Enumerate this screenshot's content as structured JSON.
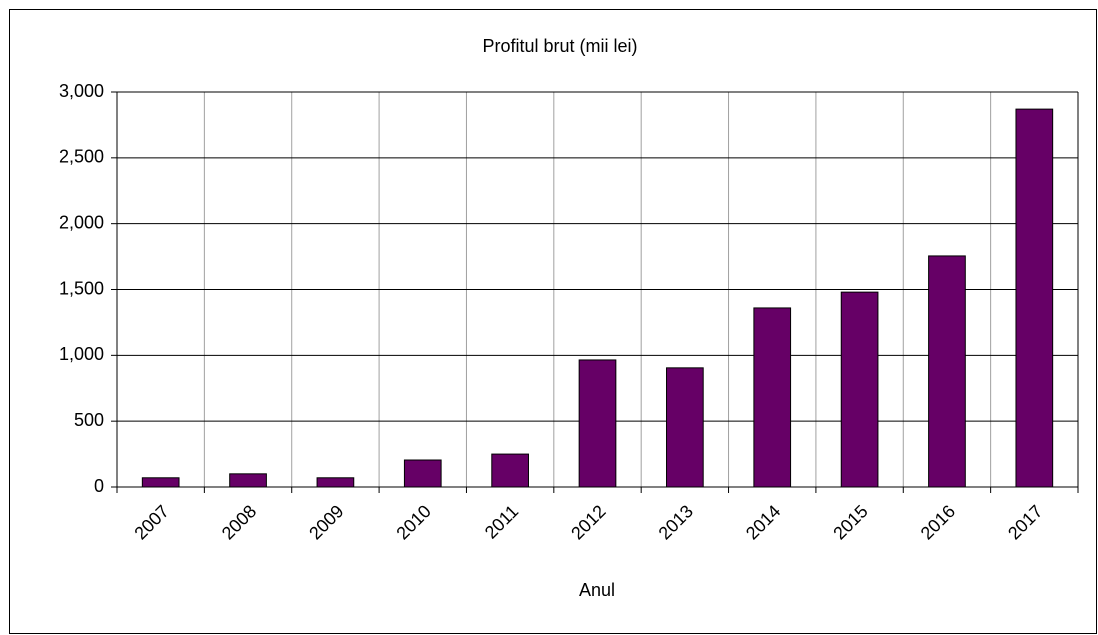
{
  "chart_data": {
    "type": "bar",
    "title": "Profitul brut (mii lei)",
    "x_label": "Anul",
    "categories": [
      "2007",
      "2008",
      "2009",
      "2010",
      "2011",
      "2012",
      "2013",
      "2014",
      "2015",
      "2016",
      "2017"
    ],
    "values": [
      70,
      100,
      70,
      205,
      250,
      965,
      905,
      1360,
      1480,
      1755,
      2870
    ],
    "color": "#660066",
    "ylim": [
      0,
      3000
    ],
    "yticks": [
      0,
      500,
      {
        "value": 1000,
        "label": "1,000"
      },
      {
        "value": 1500,
        "label": "1,500"
      },
      {
        "value": 2000,
        "label": "2,000"
      },
      {
        "value": 2500,
        "label": "2,500"
      },
      {
        "value": 3000,
        "label": "3,000"
      }
    ],
    "grid": true
  }
}
